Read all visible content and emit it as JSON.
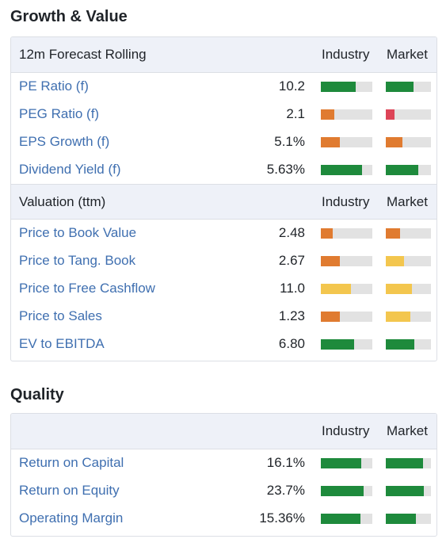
{
  "colors": {
    "green": "#1e8a3c",
    "orange": "#e07b30",
    "yellow": "#f3c64e",
    "red": "#dd4457",
    "track": "#e2e2e2",
    "link": "#3f6fb0"
  },
  "growth_value": {
    "title": "Growth & Value",
    "forecast": {
      "header": "12m Forecast Rolling",
      "col_industry": "Industry",
      "col_market": "Market",
      "rows": [
        {
          "label": "PE Ratio (f)",
          "value": "10.2",
          "industry": {
            "level": 0.68,
            "color": "green"
          },
          "market": {
            "level": 0.61,
            "color": "green"
          }
        },
        {
          "label": "PEG Ratio (f)",
          "value": "2.1",
          "industry": {
            "level": 0.26,
            "color": "orange"
          },
          "market": {
            "level": 0.19,
            "color": "red"
          }
        },
        {
          "label": "EPS Growth (f)",
          "value": "5.1%",
          "industry": {
            "level": 0.37,
            "color": "orange"
          },
          "market": {
            "level": 0.37,
            "color": "orange"
          }
        },
        {
          "label": "Dividend Yield (f)",
          "value": "5.63%",
          "industry": {
            "level": 0.8,
            "color": "green"
          },
          "market": {
            "level": 0.72,
            "color": "green"
          }
        }
      ]
    },
    "valuation": {
      "header": "Valuation (ttm)",
      "col_industry": "Industry",
      "col_market": "Market",
      "rows": [
        {
          "label": "Price to Book Value",
          "value": "2.48",
          "industry": {
            "level": 0.23,
            "color": "orange"
          },
          "market": {
            "level": 0.32,
            "color": "orange"
          }
        },
        {
          "label": "Price to Tang. Book",
          "value": "2.67",
          "industry": {
            "level": 0.37,
            "color": "orange"
          },
          "market": {
            "level": 0.4,
            "color": "yellow"
          }
        },
        {
          "label": "Price to Free Cashflow",
          "value": "11.0",
          "industry": {
            "level": 0.58,
            "color": "yellow"
          },
          "market": {
            "level": 0.58,
            "color": "yellow"
          }
        },
        {
          "label": "Price to Sales",
          "value": "1.23",
          "industry": {
            "level": 0.37,
            "color": "orange"
          },
          "market": {
            "level": 0.54,
            "color": "yellow"
          }
        },
        {
          "label": "EV to EBITDA",
          "value": "6.80",
          "industry": {
            "level": 0.65,
            "color": "green"
          },
          "market": {
            "level": 0.63,
            "color": "green"
          }
        }
      ]
    }
  },
  "quality": {
    "title": "Quality",
    "header": "",
    "col_industry": "Industry",
    "col_market": "Market",
    "rows": [
      {
        "label": "Return on Capital",
        "value": "16.1%",
        "industry": {
          "level": 0.78,
          "color": "green"
        },
        "market": {
          "level": 0.82,
          "color": "green"
        }
      },
      {
        "label": "Return on Equity",
        "value": "23.7%",
        "industry": {
          "level": 0.83,
          "color": "green"
        },
        "market": {
          "level": 0.84,
          "color": "green"
        }
      },
      {
        "label": "Operating Margin",
        "value": "15.36%",
        "industry": {
          "level": 0.77,
          "color": "green"
        },
        "market": {
          "level": 0.67,
          "color": "green"
        }
      }
    ]
  }
}
